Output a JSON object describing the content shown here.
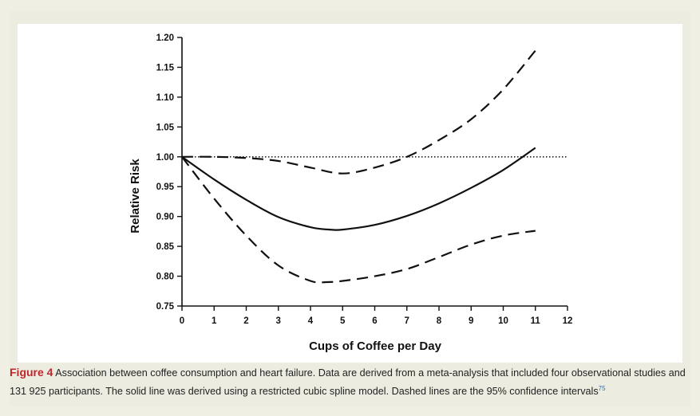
{
  "chart_data": {
    "type": "line",
    "xlabel": "Cups of Coffee per Day",
    "ylabel": "Relative Risk",
    "xlim": [
      0,
      12
    ],
    "ylim": [
      0.75,
      1.2
    ],
    "xticks": [
      "0",
      "1",
      "2",
      "3",
      "4",
      "5",
      "6",
      "7",
      "8",
      "9",
      "10",
      "11",
      "12"
    ],
    "yticks": [
      "0.75",
      "0.80",
      "0.85",
      "0.90",
      "0.95",
      "1.00",
      "1.05",
      "1.10",
      "1.15",
      "1.20"
    ],
    "reference_line": {
      "y": 1.0,
      "style": "dotted"
    },
    "series": [
      {
        "style": "solid",
        "x": [
          0,
          1,
          2,
          3,
          4,
          4.6,
          5,
          6,
          7,
          8,
          9,
          10,
          11
        ],
        "values": [
          1.0,
          0.962,
          0.928,
          0.899,
          0.882,
          0.878,
          0.878,
          0.886,
          0.901,
          0.922,
          0.948,
          0.978,
          1.015
        ]
      },
      {
        "style": "dashed",
        "x": [
          0,
          1,
          2,
          3,
          4,
          5,
          6,
          7,
          8,
          9,
          10,
          11
        ],
        "values": [
          1.0,
          1.0,
          0.998,
          0.993,
          0.982,
          0.972,
          0.982,
          1.0,
          1.028,
          1.063,
          1.113,
          1.178
        ]
      },
      {
        "style": "dashed",
        "x": [
          0,
          1,
          2,
          3,
          4,
          4.5,
          5,
          6,
          7,
          8,
          9,
          10,
          11
        ],
        "values": [
          1.0,
          0.93,
          0.868,
          0.818,
          0.792,
          0.79,
          0.792,
          0.8,
          0.812,
          0.832,
          0.853,
          0.868,
          0.876
        ]
      }
    ]
  },
  "caption": {
    "label": "Figure 4",
    "text": " Association between coffee consumption and heart failure. Data are derived from a meta-analysis that included four observational studies and 131 925 participants. The solid line was derived using a restricted cubic spline model. Dashed lines are the 95% confidence intervals",
    "ref": "75"
  }
}
